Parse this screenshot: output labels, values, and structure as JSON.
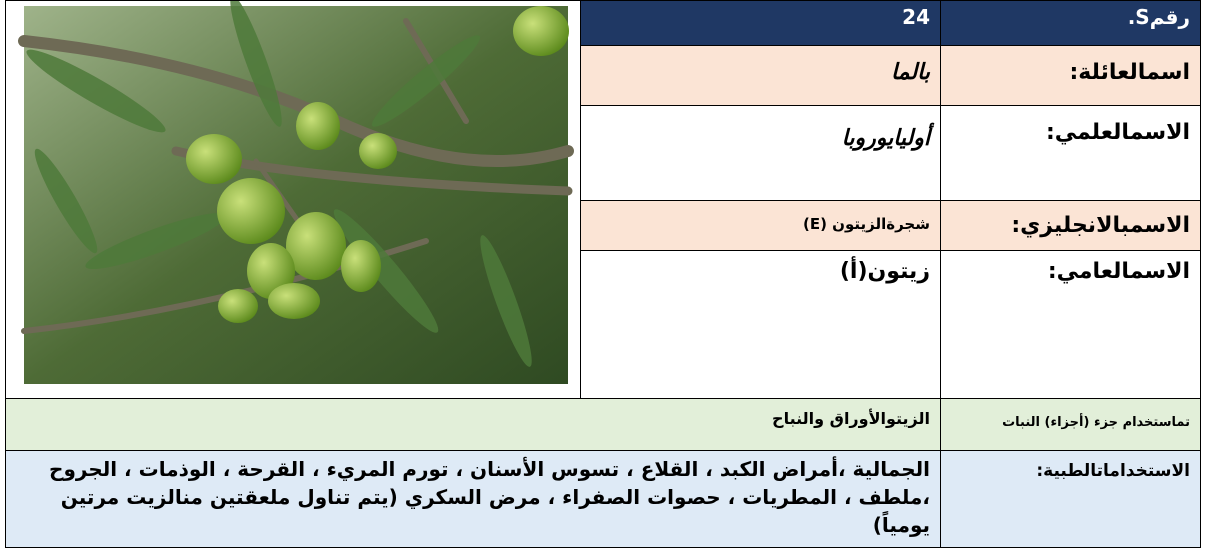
{
  "table": {
    "rows": [
      {
        "label": "رقمS.",
        "value": "24"
      },
      {
        "label": "اسمالعائلة:",
        "value": "بالما"
      },
      {
        "label": "الاسمالعلمي:",
        "value": "أوليايوروبا"
      },
      {
        "label": "الاسمبالانجليزي:",
        "value": "شجرةالزيتون (E)"
      },
      {
        "label": "الاسمالعامي:",
        "value": "زيتون(أ)"
      },
      {
        "label": "تماستخدام جزء (أجزاء) النبات",
        "value": "الزيتوالأوراق والنباح"
      },
      {
        "label": "الاستخداماتالطبية:",
        "value": "الجمالية ،أمراض الكبد ، القلاع ، تسوس الأسنان ، تورم المريء ، القرحة ، الوذمات ، الجروح ،ملطف ، المطريات ، حصوات الصفراء ، مرض السكري (يتم تناول ملعقتين منالزيت مرتين يومياً)"
      }
    ]
  }
}
